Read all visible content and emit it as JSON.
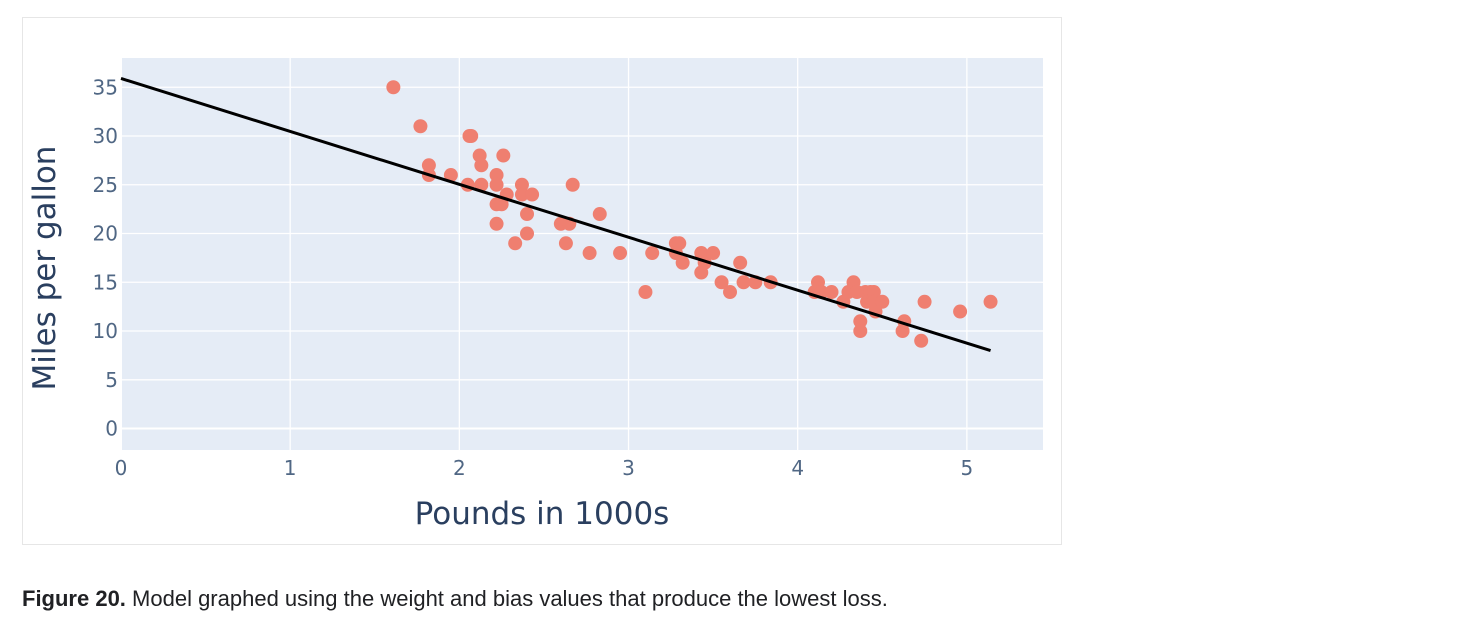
{
  "chart_data": {
    "type": "scatter",
    "xlabel": "Pounds in 1000s",
    "ylabel": "Miles per gallon",
    "xlim": [
      0,
      5.45
    ],
    "ylim": [
      -2.2,
      38
    ],
    "x_ticks": [
      0,
      1,
      2,
      3,
      4,
      5
    ],
    "y_ticks": [
      0,
      5,
      10,
      15,
      20,
      25,
      30,
      35
    ],
    "grid": true,
    "colors": {
      "points": "#ef7f70",
      "line": "#000000",
      "plot_bg": "#e5ecf6",
      "grid": "#ffffff"
    },
    "series": [
      {
        "type": "scatter",
        "points": [
          [
            1.61,
            35
          ],
          [
            1.77,
            31
          ],
          [
            1.82,
            27
          ],
          [
            1.82,
            26
          ],
          [
            1.95,
            26
          ],
          [
            2.05,
            25
          ],
          [
            2.06,
            30
          ],
          [
            2.07,
            30
          ],
          [
            2.12,
            28
          ],
          [
            2.13,
            27
          ],
          [
            2.13,
            25
          ],
          [
            2.22,
            26
          ],
          [
            2.22,
            25
          ],
          [
            2.22,
            23
          ],
          [
            2.22,
            21
          ],
          [
            2.25,
            23
          ],
          [
            2.26,
            28
          ],
          [
            2.28,
            24
          ],
          [
            2.33,
            19
          ],
          [
            2.37,
            25
          ],
          [
            2.37,
            24
          ],
          [
            2.4,
            22
          ],
          [
            2.4,
            20
          ],
          [
            2.43,
            24
          ],
          [
            2.6,
            21
          ],
          [
            2.63,
            19
          ],
          [
            2.65,
            21
          ],
          [
            2.67,
            25
          ],
          [
            2.77,
            18
          ],
          [
            2.83,
            22
          ],
          [
            2.95,
            18
          ],
          [
            3.1,
            14
          ],
          [
            3.14,
            18
          ],
          [
            3.28,
            19
          ],
          [
            3.28,
            18
          ],
          [
            3.3,
            19
          ],
          [
            3.32,
            17
          ],
          [
            3.43,
            16
          ],
          [
            3.43,
            18
          ],
          [
            3.45,
            17
          ],
          [
            3.5,
            18
          ],
          [
            3.55,
            15
          ],
          [
            3.6,
            14
          ],
          [
            3.66,
            17
          ],
          [
            3.68,
            15
          ],
          [
            3.75,
            15
          ],
          [
            3.84,
            15
          ],
          [
            4.1,
            14
          ],
          [
            4.12,
            15
          ],
          [
            4.14,
            14
          ],
          [
            4.2,
            14
          ],
          [
            4.27,
            13
          ],
          [
            4.3,
            14
          ],
          [
            4.33,
            15
          ],
          [
            4.35,
            14
          ],
          [
            4.37,
            11
          ],
          [
            4.37,
            10
          ],
          [
            4.4,
            14
          ],
          [
            4.41,
            13
          ],
          [
            4.43,
            14
          ],
          [
            4.45,
            14
          ],
          [
            4.45,
            13
          ],
          [
            4.46,
            12
          ],
          [
            4.5,
            13
          ],
          [
            4.62,
            10
          ],
          [
            4.63,
            11
          ],
          [
            4.73,
            9
          ],
          [
            4.75,
            13
          ],
          [
            4.96,
            12
          ],
          [
            5.14,
            13
          ]
        ]
      },
      {
        "type": "line",
        "points": [
          [
            0,
            35.9
          ],
          [
            5.14,
            8
          ]
        ]
      }
    ]
  },
  "caption": {
    "label": "Figure 20.",
    "text": " Model graphed using the weight and bias values that produce the lowest loss."
  }
}
